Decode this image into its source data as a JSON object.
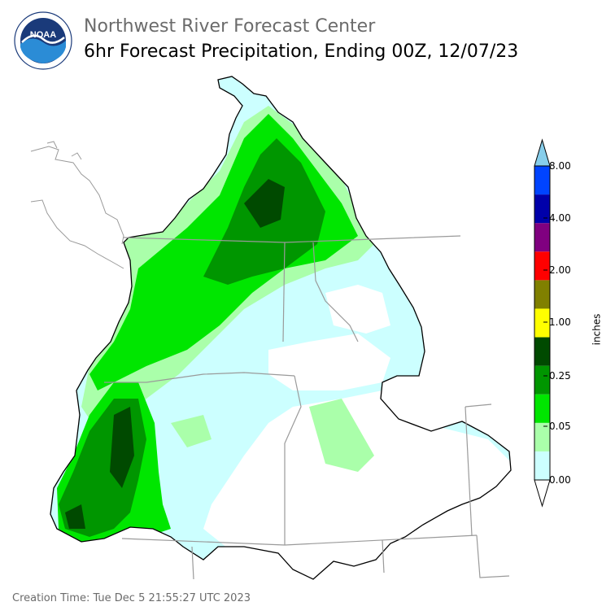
{
  "header": {
    "org": "Northwest River Forecast Center",
    "product": "6hr Forecast Precipitation, Ending 00Z, 12/07/23"
  },
  "logo": {
    "text": "NOAA",
    "ring_text": "NATIONAL OCEANIC AND ATMOSPHERIC ADMINISTRATION · U.S. DEPARTMENT OF COMMERCE"
  },
  "legend": {
    "unit": "inches",
    "ticks": [
      "8.00",
      "4.00",
      "2.00",
      "1.00",
      "0.25",
      "0.05",
      "0.00"
    ],
    "colors": [
      "#ffffff",
      "#ccffff",
      "#aaffaa",
      "#00e600",
      "#009600",
      "#004a00",
      "#ffff00",
      "#808000",
      "#ff0000",
      "#800080",
      "#0000aa",
      "#0044ff",
      "#87ceeb"
    ]
  },
  "footer": {
    "creation_time": "Creation Time: Tue Dec 5 21:55:27 UTC 2023"
  }
}
